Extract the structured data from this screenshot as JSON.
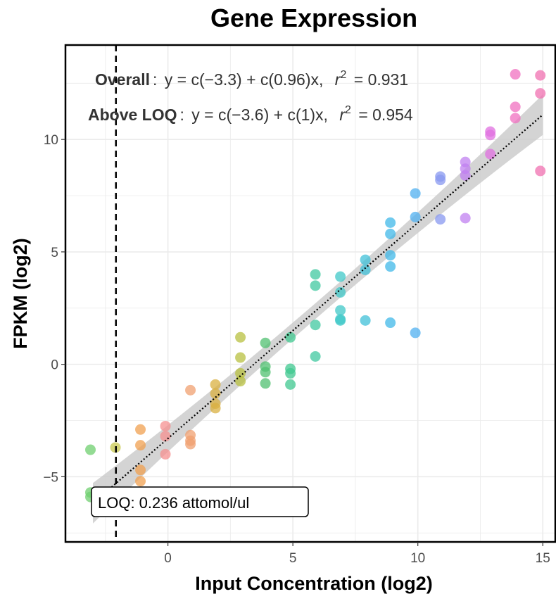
{
  "chart_data": {
    "type": "scatter",
    "title": "Gene Expression",
    "xlabel": "Input Concentration (log2)",
    "ylabel": "FPKM (log2)",
    "xlim": [
      -4.1,
      15.5
    ],
    "ylim": [
      -7.9,
      14.2
    ],
    "xticks": [
      0,
      5,
      10,
      15
    ],
    "yticks": [
      -5,
      0,
      5,
      10
    ],
    "grid": true,
    "fit_line": {
      "slope": 0.96,
      "intercept": -3.3,
      "x_range": [
        -3.0,
        15.0
      ]
    },
    "loq": {
      "x": -2.08,
      "label": "LOQ: 0.236 attomol/ul"
    },
    "annotations": [
      {
        "label": "Overall",
        "equation": "y = c(−3.3) + c(0.96)x,",
        "r2_label": "r",
        "r2_power": "2",
        "r2_value": "= 0.931"
      },
      {
        "label": "Above LOQ",
        "equation": "y = c(−3.6) + c(1)x,",
        "r2_label": "r",
        "r2_power": "2",
        "r2_value": "= 0.954"
      }
    ],
    "points": [
      {
        "x": -3.1,
        "y": -3.8,
        "color": "#6fcf6f"
      },
      {
        "x": -3.1,
        "y": -5.7,
        "color": "#6fcf6f"
      },
      {
        "x": -3.1,
        "y": -5.9,
        "color": "#6fcf6f"
      },
      {
        "x": -2.1,
        "y": -3.7,
        "color": "#c8c850"
      },
      {
        "x": -1.1,
        "y": -2.9,
        "color": "#f0a050"
      },
      {
        "x": -1.1,
        "y": -3.6,
        "color": "#f0a050"
      },
      {
        "x": -1.1,
        "y": -4.7,
        "color": "#f0a050"
      },
      {
        "x": -1.1,
        "y": -5.2,
        "color": "#f0a050"
      },
      {
        "x": -0.1,
        "y": -2.75,
        "color": "#f59090"
      },
      {
        "x": -0.1,
        "y": -3.2,
        "color": "#f59090"
      },
      {
        "x": -0.1,
        "y": -4.0,
        "color": "#f59090"
      },
      {
        "x": 0.9,
        "y": -1.15,
        "color": "#f0a070"
      },
      {
        "x": 0.9,
        "y": -3.15,
        "color": "#f0a070"
      },
      {
        "x": 0.9,
        "y": -3.4,
        "color": "#f0a070"
      },
      {
        "x": 0.9,
        "y": -3.55,
        "color": "#f0a070"
      },
      {
        "x": 1.9,
        "y": -0.9,
        "color": "#d9b040"
      },
      {
        "x": 1.9,
        "y": -1.3,
        "color": "#d9b040"
      },
      {
        "x": 1.9,
        "y": -1.75,
        "color": "#d9b040"
      },
      {
        "x": 1.9,
        "y": -1.95,
        "color": "#d9b040"
      },
      {
        "x": 2.9,
        "y": 1.2,
        "color": "#b8c040"
      },
      {
        "x": 2.9,
        "y": 0.3,
        "color": "#b8c040"
      },
      {
        "x": 2.9,
        "y": -0.4,
        "color": "#b8c040"
      },
      {
        "x": 2.9,
        "y": -0.75,
        "color": "#b8c040"
      },
      {
        "x": 3.9,
        "y": 0.95,
        "color": "#50c070"
      },
      {
        "x": 3.9,
        "y": -0.1,
        "color": "#50c070"
      },
      {
        "x": 3.9,
        "y": -0.35,
        "color": "#50c070"
      },
      {
        "x": 3.9,
        "y": -0.85,
        "color": "#50c070"
      },
      {
        "x": 4.9,
        "y": 1.2,
        "color": "#40c890"
      },
      {
        "x": 4.9,
        "y": -0.2,
        "color": "#40c890"
      },
      {
        "x": 4.9,
        "y": -0.4,
        "color": "#40c890"
      },
      {
        "x": 4.9,
        "y": -0.9,
        "color": "#40c890"
      },
      {
        "x": 5.9,
        "y": 4.0,
        "color": "#40c8a0"
      },
      {
        "x": 5.9,
        "y": 3.5,
        "color": "#40c8a0"
      },
      {
        "x": 5.9,
        "y": 1.75,
        "color": "#40c8a0"
      },
      {
        "x": 5.9,
        "y": 0.35,
        "color": "#40c8a0"
      },
      {
        "x": 6.9,
        "y": 3.9,
        "color": "#40c8c8"
      },
      {
        "x": 6.9,
        "y": 3.2,
        "color": "#40c8c8"
      },
      {
        "x": 6.9,
        "y": 2.4,
        "color": "#40c8c8"
      },
      {
        "x": 6.9,
        "y": 2.0,
        "color": "#40c8c8"
      },
      {
        "x": 6.9,
        "y": 1.95,
        "color": "#40c8c8"
      },
      {
        "x": 7.9,
        "y": 4.65,
        "color": "#40c0d8"
      },
      {
        "x": 7.9,
        "y": 4.2,
        "color": "#40c0d8"
      },
      {
        "x": 7.9,
        "y": 1.95,
        "color": "#40c0d8"
      },
      {
        "x": 8.9,
        "y": 6.3,
        "color": "#40b8e8"
      },
      {
        "x": 8.9,
        "y": 5.8,
        "color": "#40b8e8"
      },
      {
        "x": 8.9,
        "y": 4.85,
        "color": "#40b8e8"
      },
      {
        "x": 8.9,
        "y": 4.35,
        "color": "#40b8e8"
      },
      {
        "x": 8.9,
        "y": 1.85,
        "color": "#40b8e8"
      },
      {
        "x": 9.9,
        "y": 7.6,
        "color": "#50b0f0"
      },
      {
        "x": 9.9,
        "y": 6.55,
        "color": "#50b0f0"
      },
      {
        "x": 9.9,
        "y": 1.4,
        "color": "#50b0f0"
      },
      {
        "x": 10.9,
        "y": 8.35,
        "color": "#8898f0"
      },
      {
        "x": 10.9,
        "y": 8.2,
        "color": "#8898f0"
      },
      {
        "x": 10.9,
        "y": 6.45,
        "color": "#8898f0"
      },
      {
        "x": 11.9,
        "y": 9.0,
        "color": "#c080f0"
      },
      {
        "x": 11.9,
        "y": 8.7,
        "color": "#c080f0"
      },
      {
        "x": 11.9,
        "y": 8.4,
        "color": "#c080f0"
      },
      {
        "x": 11.9,
        "y": 6.5,
        "color": "#c080f0"
      },
      {
        "x": 12.9,
        "y": 10.35,
        "color": "#e070e0"
      },
      {
        "x": 12.9,
        "y": 10.2,
        "color": "#e070e0"
      },
      {
        "x": 12.9,
        "y": 9.35,
        "color": "#e070e0"
      },
      {
        "x": 13.9,
        "y": 12.9,
        "color": "#f070c0"
      },
      {
        "x": 13.9,
        "y": 11.45,
        "color": "#f070c0"
      },
      {
        "x": 13.9,
        "y": 10.95,
        "color": "#f070c0"
      },
      {
        "x": 14.9,
        "y": 12.85,
        "color": "#f070b0"
      },
      {
        "x": 14.9,
        "y": 12.05,
        "color": "#f070b0"
      },
      {
        "x": 14.9,
        "y": 8.6,
        "color": "#f070b0"
      }
    ]
  }
}
